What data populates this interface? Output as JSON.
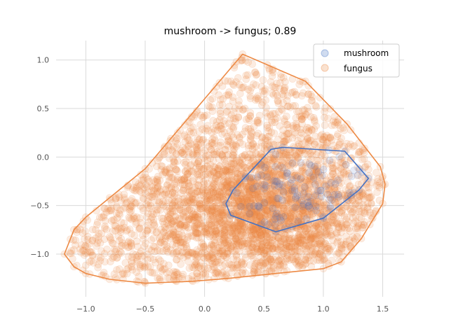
{
  "chart_data": {
    "type": "scatter",
    "title": "mushroom -> fungus; 0.89",
    "xlabel": "",
    "ylabel": "",
    "xlim": [
      -1.25,
      1.68
    ],
    "ylim": [
      -1.44,
      1.2
    ],
    "x_ticks": [
      -1.0,
      -0.5,
      0.0,
      0.5,
      1.0,
      1.5
    ],
    "x_tick_labels": [
      "−1.0",
      "−0.5",
      "0.0",
      "0.5",
      "1.0",
      "1.5"
    ],
    "y_ticks": [
      1.0,
      0.5,
      0.0,
      -0.5,
      -1.0
    ],
    "y_tick_labels": [
      "1.0",
      "0.5",
      "0.0",
      "−0.5",
      "−1.0"
    ],
    "grid": true,
    "legend_position": "top-right",
    "series": [
      {
        "name": "mushroom",
        "color": "#4472c4",
        "point_count": 120,
        "cluster": {
          "center": [
            0.85,
            -0.35
          ],
          "spread": [
            0.28,
            0.2
          ]
        },
        "hull": [
          [
            0.56,
            0.08
          ],
          [
            0.66,
            0.1
          ],
          [
            1.18,
            0.06
          ],
          [
            1.38,
            -0.22
          ],
          [
            1.3,
            -0.34
          ],
          [
            1.0,
            -0.63
          ],
          [
            0.6,
            -0.77
          ],
          [
            0.22,
            -0.6
          ],
          [
            0.18,
            -0.48
          ],
          [
            0.24,
            -0.34
          ]
        ]
      },
      {
        "name": "fungus",
        "color": "#ed8a45",
        "point_count": 3600,
        "cluster": {
          "center": [
            0.45,
            -0.55
          ],
          "spread": [
            0.48,
            0.36
          ]
        },
        "hull": [
          [
            0.32,
            1.06
          ],
          [
            0.85,
            0.78
          ],
          [
            1.2,
            0.34
          ],
          [
            1.48,
            -0.1
          ],
          [
            1.52,
            -0.28
          ],
          [
            1.5,
            -0.48
          ],
          [
            1.32,
            -0.84
          ],
          [
            1.15,
            -1.08
          ],
          [
            1.0,
            -1.15
          ],
          [
            0.6,
            -1.2
          ],
          [
            0.2,
            -1.25
          ],
          [
            -0.1,
            -1.28
          ],
          [
            -0.5,
            -1.3
          ],
          [
            -0.8,
            -1.26
          ],
          [
            -1.0,
            -1.2
          ],
          [
            -1.1,
            -1.13
          ],
          [
            -1.18,
            -1.0
          ],
          [
            -1.1,
            -0.75
          ],
          [
            -1.0,
            -0.62
          ],
          [
            -0.5,
            -0.12
          ]
        ]
      }
    ]
  }
}
